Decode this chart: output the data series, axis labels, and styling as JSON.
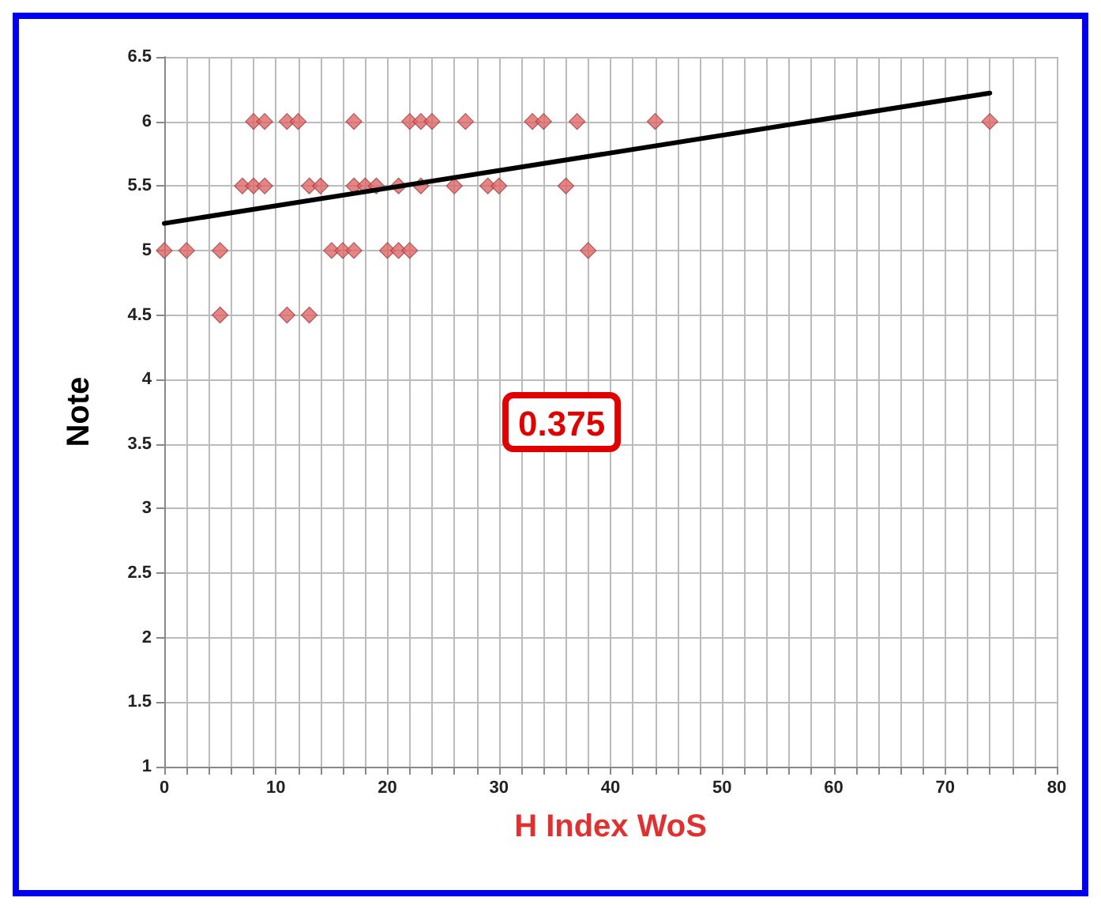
{
  "chart_data": {
    "type": "scatter",
    "xlabel": "H Index WoS",
    "ylabel": "Note",
    "annotations": [
      "0.375"
    ],
    "marker": "diamond",
    "grid": true,
    "xlim": [
      0,
      80
    ],
    "ylim": [
      1,
      6.5
    ],
    "xticks": [
      0,
      {
        "value": 2,
        "label": null
      },
      {
        "value": 4,
        "label": null
      },
      {
        "value": 6,
        "label": null
      },
      {
        "value": 8,
        "label": null
      },
      10,
      {
        "value": 12,
        "label": null
      },
      {
        "value": 14,
        "label": null
      },
      {
        "value": 16,
        "label": null
      },
      {
        "value": 18,
        "label": null
      },
      20,
      {
        "value": 22,
        "label": null
      },
      {
        "value": 24,
        "label": null
      },
      {
        "value": 26,
        "label": null
      },
      {
        "value": 28,
        "label": null
      },
      30,
      {
        "value": 32,
        "label": null
      },
      {
        "value": 34,
        "label": null
      },
      {
        "value": 36,
        "label": null
      },
      {
        "value": 38,
        "label": null
      },
      40,
      {
        "value": 42,
        "label": null
      },
      {
        "value": 44,
        "label": null
      },
      {
        "value": 46,
        "label": null
      },
      {
        "value": 48,
        "label": null
      },
      50,
      {
        "value": 52,
        "label": null
      },
      {
        "value": 54,
        "label": null
      },
      {
        "value": 56,
        "label": null
      },
      {
        "value": 58,
        "label": null
      },
      60,
      {
        "value": 62,
        "label": null
      },
      {
        "value": 64,
        "label": null
      },
      {
        "value": 66,
        "label": null
      },
      {
        "value": 68,
        "label": null
      },
      70,
      {
        "value": 72,
        "label": null
      },
      {
        "value": 74,
        "label": null
      },
      {
        "value": 76,
        "label": null
      },
      {
        "value": 78,
        "label": null
      },
      80
    ],
    "yticks": [
      1,
      1.5,
      2,
      2.5,
      3,
      3.5,
      4,
      4.5,
      5,
      5.5,
      6,
      6.5
    ],
    "series": [
      {
        "color": "#e06666",
        "x": [
          8,
          9,
          11,
          12,
          17,
          22,
          23,
          24,
          27,
          33,
          34,
          37,
          44,
          74,
          7,
          8,
          9,
          13,
          14,
          17,
          18,
          19,
          21,
          23,
          26,
          29,
          30,
          36,
          0,
          2,
          5,
          15,
          16,
          17,
          20,
          21,
          22,
          38,
          5,
          11,
          13
        ],
        "values": [
          6,
          6,
          6,
          6,
          6,
          6,
          6,
          6,
          6,
          6,
          6,
          6,
          6,
          6,
          5.5,
          5.5,
          5.5,
          5.5,
          5.5,
          5.5,
          5.5,
          5.5,
          5.5,
          5.5,
          5.5,
          5.5,
          5.5,
          5.5,
          5,
          5,
          5,
          5,
          5,
          5,
          5,
          5,
          5,
          5,
          4.5,
          4.5,
          4.5
        ]
      },
      {
        "type": "line",
        "color": "#000000",
        "marker": "none",
        "x": [
          0,
          74
        ],
        "values": [
          5.21,
          6.22
        ]
      }
    ]
  }
}
